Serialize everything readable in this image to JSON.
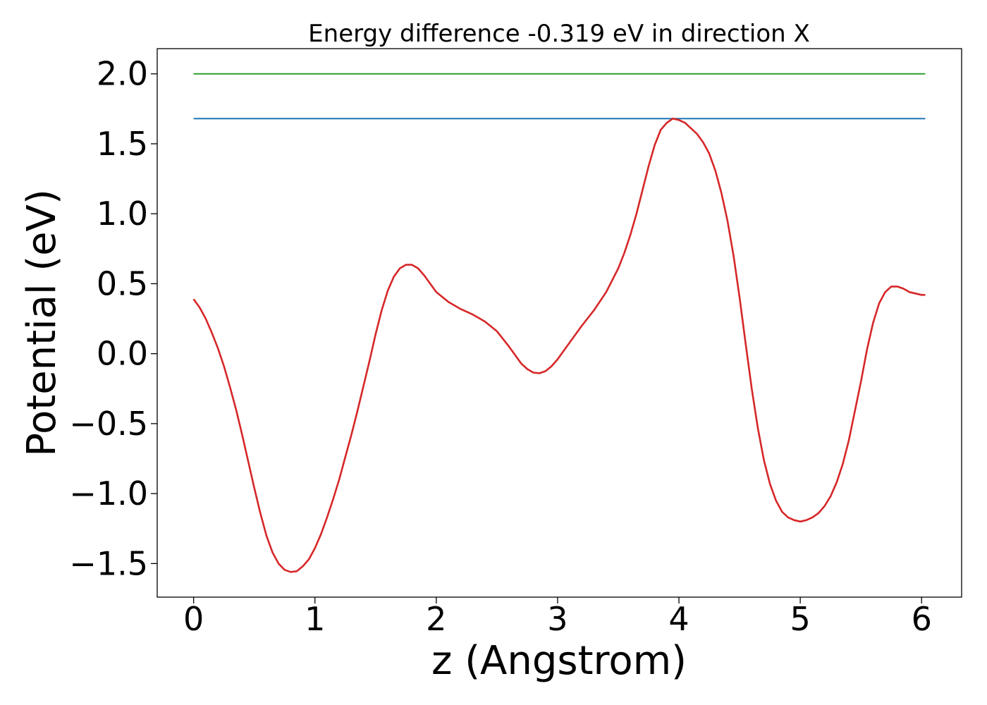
{
  "chart_data": {
    "type": "line",
    "title": "Energy difference -0.319 eV in direction X",
    "xlabel": "z (Angstrom)",
    "ylabel": "Potential (eV)",
    "xlim": [
      -0.3,
      6.33
    ],
    "ylim": [
      -1.74,
      2.18
    ],
    "xticks": [
      0,
      1,
      2,
      3,
      4,
      5,
      6
    ],
    "xtick_labels": [
      "0",
      "1",
      "2",
      "3",
      "4",
      "5",
      "6"
    ],
    "yticks": [
      -1.5,
      -1.0,
      -0.5,
      0.0,
      0.5,
      1.0,
      1.5,
      2.0
    ],
    "ytick_labels": [
      "−1.5",
      "−1.0",
      "−0.5",
      "0.0",
      "0.5",
      "1.0",
      "1.5",
      "2.0"
    ],
    "grid": false,
    "legend": "none",
    "series": [
      {
        "color": "#2ca02c",
        "x": [
          0,
          6.03
        ],
        "y": [
          2.0,
          2.0
        ]
      },
      {
        "color": "#1f77b4",
        "x": [
          0,
          6.03
        ],
        "y": [
          1.68,
          1.68
        ]
      },
      {
        "color": "#d62728",
        "x": [
          0,
          0.05,
          0.1,
          0.15,
          0.2,
          0.25,
          0.3,
          0.35,
          0.4,
          0.45,
          0.5,
          0.55,
          0.6,
          0.65,
          0.7,
          0.75,
          0.8,
          0.85,
          0.9,
          0.95,
          1.0,
          1.05,
          1.1,
          1.15,
          1.2,
          1.25,
          1.3,
          1.35,
          1.4,
          1.45,
          1.5,
          1.55,
          1.6,
          1.65,
          1.7,
          1.75,
          1.8,
          1.85,
          1.9,
          1.95,
          2.0,
          2.1,
          2.2,
          2.3,
          2.4,
          2.5,
          2.6,
          2.7,
          2.75,
          2.8,
          2.85,
          2.9,
          2.95,
          3.0,
          3.1,
          3.2,
          3.3,
          3.4,
          3.5,
          3.55,
          3.6,
          3.65,
          3.7,
          3.75,
          3.8,
          3.85,
          3.9,
          3.95,
          4.0,
          4.05,
          4.1,
          4.15,
          4.2,
          4.25,
          4.3,
          4.35,
          4.4,
          4.45,
          4.5,
          4.55,
          4.6,
          4.65,
          4.7,
          4.75,
          4.8,
          4.85,
          4.9,
          4.95,
          5.0,
          5.05,
          5.1,
          5.15,
          5.2,
          5.25,
          5.3,
          5.35,
          5.4,
          5.45,
          5.5,
          5.55,
          5.6,
          5.65,
          5.7,
          5.75,
          5.8,
          5.85,
          5.9,
          5.95,
          6.0,
          6.03
        ],
        "y": [
          0.39,
          0.33,
          0.25,
          0.15,
          0.04,
          -0.09,
          -0.24,
          -0.4,
          -0.58,
          -0.77,
          -0.96,
          -1.14,
          -1.3,
          -1.42,
          -1.5,
          -1.545,
          -1.56,
          -1.555,
          -1.52,
          -1.47,
          -1.39,
          -1.29,
          -1.17,
          -1.04,
          -0.9,
          -0.74,
          -0.58,
          -0.41,
          -0.23,
          -0.05,
          0.14,
          0.31,
          0.45,
          0.55,
          0.61,
          0.635,
          0.635,
          0.61,
          0.56,
          0.5,
          0.44,
          0.37,
          0.32,
          0.28,
          0.23,
          0.16,
          0.05,
          -0.07,
          -0.11,
          -0.135,
          -0.14,
          -0.125,
          -0.09,
          -0.04,
          0.08,
          0.2,
          0.31,
          0.44,
          0.61,
          0.72,
          0.85,
          1.0,
          1.17,
          1.34,
          1.49,
          1.6,
          1.65,
          1.68,
          1.67,
          1.65,
          1.61,
          1.57,
          1.51,
          1.43,
          1.31,
          1.15,
          0.95,
          0.7,
          0.4,
          0.07,
          -0.25,
          -0.53,
          -0.76,
          -0.93,
          -1.05,
          -1.13,
          -1.17,
          -1.19,
          -1.2,
          -1.19,
          -1.17,
          -1.14,
          -1.09,
          -1.02,
          -0.92,
          -0.79,
          -0.62,
          -0.41,
          -0.2,
          0.03,
          0.22,
          0.36,
          0.44,
          0.48,
          0.48,
          0.465,
          0.44,
          0.43,
          0.42,
          0.42
        ]
      }
    ]
  }
}
